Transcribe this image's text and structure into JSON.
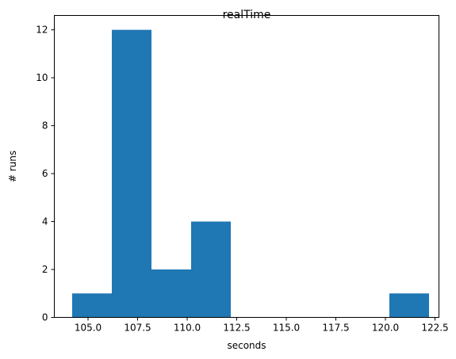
{
  "chart_data": {
    "type": "bar",
    "title": "realTime",
    "xlabel": "seconds",
    "ylabel": "# runs",
    "xlim": [
      103.3,
      122.7
    ],
    "ylim": [
      0,
      12.6
    ],
    "bin_edges": [
      104.2,
      106.2,
      108.2,
      110.2,
      112.2,
      114.2,
      116.2,
      118.2,
      120.2,
      122.2
    ],
    "values": [
      1,
      12,
      2,
      4,
      0,
      0,
      0,
      0,
      1
    ],
    "xticks": [
      "105.0",
      "107.5",
      "110.0",
      "112.5",
      "115.0",
      "117.5",
      "120.0",
      "122.5"
    ],
    "yticks": [
      "0",
      "2",
      "4",
      "6",
      "8",
      "10",
      "12"
    ],
    "bar_color": "#1f77b4",
    "grid": false
  }
}
